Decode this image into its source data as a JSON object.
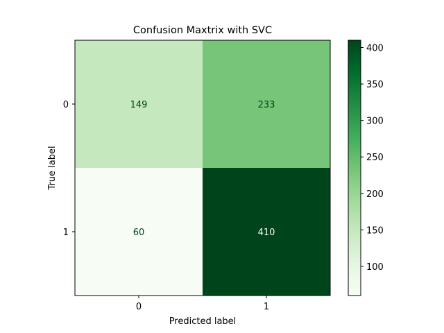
{
  "chart_data": {
    "type": "heatmap",
    "title": "Confusion Maxtrix with SVC",
    "xlabel": "Predicted label",
    "ylabel": "True label",
    "x_categories": [
      "0",
      "1"
    ],
    "y_categories": [
      "0",
      "1"
    ],
    "values": [
      [
        149,
        233
      ],
      [
        60,
        410
      ]
    ],
    "colormap": "Greens",
    "colorbar": {
      "ticks": [
        100,
        150,
        200,
        250,
        300,
        350,
        400
      ],
      "range": [
        60,
        410
      ]
    },
    "grid": false,
    "text_colors": {
      "dark_text": "#00441b",
      "light_text": "#f7fcf5"
    }
  }
}
